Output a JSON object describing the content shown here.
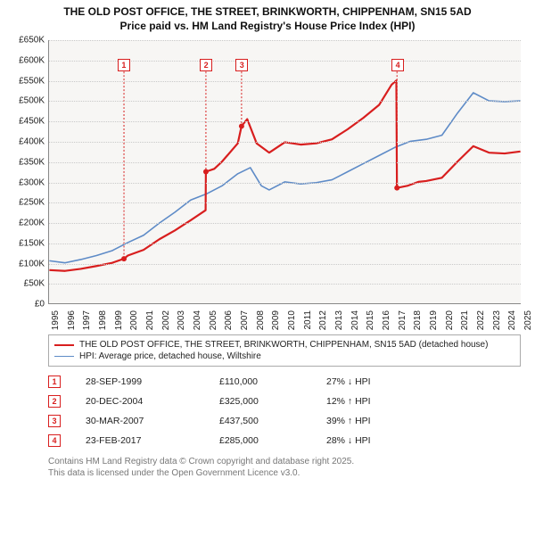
{
  "title_line1": "THE OLD POST OFFICE, THE STREET, BRINKWORTH, CHIPPENHAM, SN15 5AD",
  "title_line2": "Price paid vs. HM Land Registry's House Price Index (HPI)",
  "chart": {
    "type": "line",
    "background_color": "#f7f6f4",
    "grid_color": "#c9c9c9",
    "ylim": [
      0,
      650000
    ],
    "ytick_step": 50000,
    "yticks": [
      "£0",
      "£50K",
      "£100K",
      "£150K",
      "£200K",
      "£250K",
      "£300K",
      "£350K",
      "£400K",
      "£450K",
      "£500K",
      "£550K",
      "£600K",
      "£650K"
    ],
    "xlim": [
      1995,
      2025
    ],
    "xticks": [
      "1995",
      "1996",
      "1997",
      "1998",
      "1999",
      "2000",
      "2001",
      "2002",
      "2003",
      "2004",
      "2005",
      "2006",
      "2007",
      "2008",
      "2009",
      "2010",
      "2011",
      "2012",
      "2013",
      "2014",
      "2015",
      "2016",
      "2017",
      "2018",
      "2019",
      "2020",
      "2021",
      "2022",
      "2023",
      "2024",
      "2025"
    ],
    "series": {
      "hpi": {
        "label": "HPI: Average price, detached house, Wiltshire",
        "color": "#5e8bc7",
        "line_width": 1.6,
        "points": [
          [
            1995,
            105000
          ],
          [
            1996,
            100000
          ],
          [
            1997,
            108000
          ],
          [
            1998,
            118000
          ],
          [
            1999,
            130000
          ],
          [
            2000,
            150000
          ],
          [
            2001,
            168000
          ],
          [
            2002,
            198000
          ],
          [
            2003,
            225000
          ],
          [
            2004,
            255000
          ],
          [
            2005,
            270000
          ],
          [
            2006,
            290000
          ],
          [
            2007,
            320000
          ],
          [
            2007.8,
            335000
          ],
          [
            2008.5,
            290000
          ],
          [
            2009,
            280000
          ],
          [
            2010,
            300000
          ],
          [
            2011,
            295000
          ],
          [
            2012,
            298000
          ],
          [
            2013,
            305000
          ],
          [
            2014,
            325000
          ],
          [
            2015,
            345000
          ],
          [
            2016,
            365000
          ],
          [
            2017,
            385000
          ],
          [
            2018,
            400000
          ],
          [
            2019,
            405000
          ],
          [
            2020,
            415000
          ],
          [
            2021,
            470000
          ],
          [
            2022,
            520000
          ],
          [
            2023,
            500000
          ],
          [
            2024,
            498000
          ],
          [
            2025,
            500000
          ]
        ]
      },
      "price_paid": {
        "label": "THE OLD POST OFFICE, THE STREET, BRINKWORTH, CHIPPENHAM, SN15 5AD (detached house)",
        "color": "#d81e1e",
        "line_width": 2.2,
        "points": [
          [
            1995,
            82000
          ],
          [
            1996,
            80000
          ],
          [
            1997,
            85000
          ],
          [
            1998,
            92000
          ],
          [
            1999,
            100000
          ],
          [
            1999.75,
            110000
          ],
          [
            2000,
            118000
          ],
          [
            2001,
            132000
          ],
          [
            2002,
            158000
          ],
          [
            2003,
            180000
          ],
          [
            2004,
            205000
          ],
          [
            2004.95,
            230000
          ],
          [
            2004.97,
            325000
          ],
          [
            2005.5,
            332000
          ],
          [
            2006,
            350000
          ],
          [
            2007,
            395000
          ],
          [
            2007.24,
            437500
          ],
          [
            2007.6,
            455000
          ],
          [
            2008.2,
            395000
          ],
          [
            2009,
            372000
          ],
          [
            2010,
            398000
          ],
          [
            2011,
            392000
          ],
          [
            2012,
            395000
          ],
          [
            2013,
            405000
          ],
          [
            2014,
            430000
          ],
          [
            2015,
            458000
          ],
          [
            2016,
            490000
          ],
          [
            2016.8,
            540000
          ],
          [
            2017.1,
            550000
          ],
          [
            2017.14,
            285000
          ],
          [
            2017.8,
            290000
          ],
          [
            2018.5,
            300000
          ],
          [
            2019,
            302000
          ],
          [
            2020,
            310000
          ],
          [
            2021,
            350000
          ],
          [
            2022,
            388000
          ],
          [
            2023,
            372000
          ],
          [
            2024,
            370000
          ],
          [
            2025,
            375000
          ]
        ]
      }
    },
    "markers": [
      {
        "n": "1",
        "year": 1999.75,
        "y_top": 590000,
        "color": "#d81e1e"
      },
      {
        "n": "2",
        "year": 2004.97,
        "y_top": 590000,
        "color": "#d81e1e"
      },
      {
        "n": "3",
        "year": 2007.24,
        "y_top": 590000,
        "color": "#d81e1e"
      },
      {
        "n": "4",
        "year": 2017.14,
        "y_top": 590000,
        "color": "#d81e1e"
      }
    ]
  },
  "legend": [
    {
      "color": "#d81e1e",
      "width": 2.2,
      "label": "THE OLD POST OFFICE, THE STREET, BRINKWORTH, CHIPPENHAM, SN15 5AD (detached house)"
    },
    {
      "color": "#5e8bc7",
      "width": 1.6,
      "label": "HPI: Average price, detached house, Wiltshire"
    }
  ],
  "sales": [
    {
      "n": "1",
      "date": "28-SEP-1999",
      "price": "£110,000",
      "delta": "27% ↓ HPI",
      "color": "#d81e1e"
    },
    {
      "n": "2",
      "date": "20-DEC-2004",
      "price": "£325,000",
      "delta": "12% ↑ HPI",
      "color": "#d81e1e"
    },
    {
      "n": "3",
      "date": "30-MAR-2007",
      "price": "£437,500",
      "delta": "39% ↑ HPI",
      "color": "#d81e1e"
    },
    {
      "n": "4",
      "date": "23-FEB-2017",
      "price": "£285,000",
      "delta": "28% ↓ HPI",
      "color": "#d81e1e"
    }
  ],
  "footer_line1": "Contains HM Land Registry data © Crown copyright and database right 2025.",
  "footer_line2": "This data is licensed under the Open Government Licence v3.0."
}
